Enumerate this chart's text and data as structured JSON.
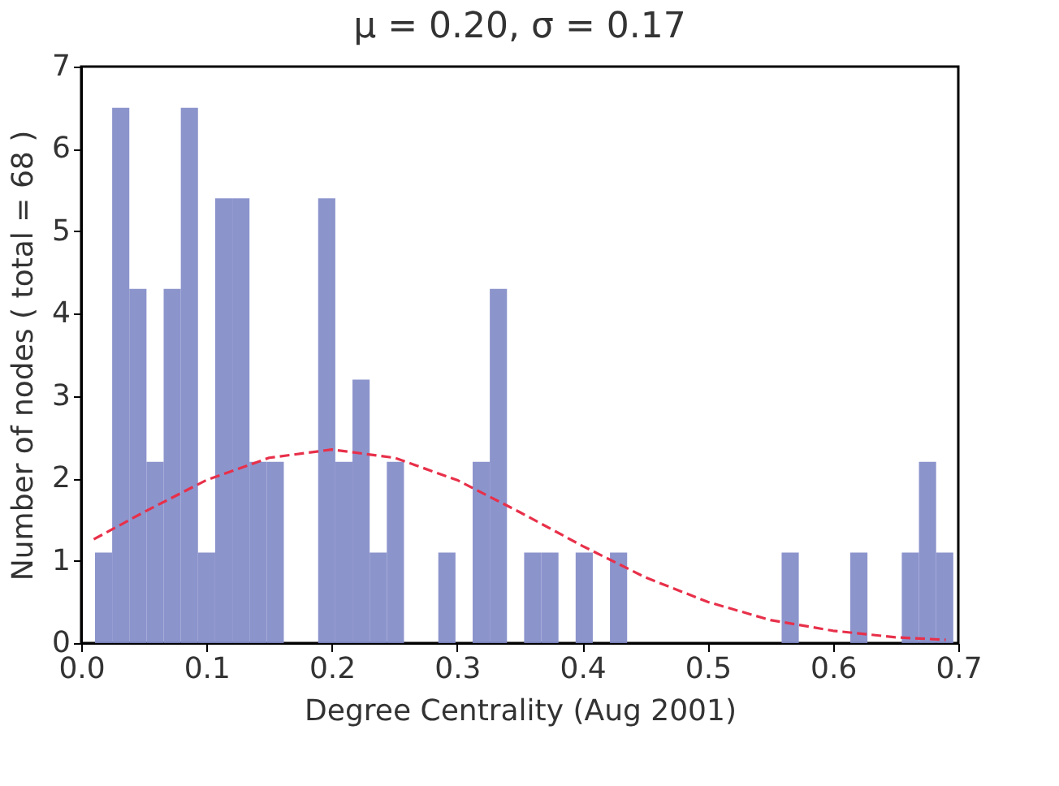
{
  "chart_data": {
    "type": "histogram",
    "title": "μ = 0.20, σ = 0.17",
    "xlabel": "Degree Centrality (Aug 2001)",
    "ylabel": "Number of nodes ( total = 68 )",
    "bins": [
      0.011,
      0.0247,
      0.0384,
      0.0521,
      0.0658,
      0.0795,
      0.0932,
      0.1069,
      0.1206,
      0.1343,
      0.148,
      0.1617,
      0.1754,
      0.1891,
      0.2028,
      0.2165,
      0.2302,
      0.2439,
      0.2576,
      0.2713,
      0.285,
      0.2987,
      0.3124,
      0.3261,
      0.3398,
      0.3535,
      0.3672,
      0.3809,
      0.3946,
      0.4083,
      0.422,
      0.4357,
      0.4494,
      0.4631,
      0.4768,
      0.4905,
      0.5042,
      0.5179,
      0.5316,
      0.5453,
      0.559,
      0.5727,
      0.5864,
      0.6001,
      0.6138,
      0.6275,
      0.6412,
      0.6549,
      0.6686,
      0.6823,
      0.696
    ],
    "values": [
      1.1,
      6.5,
      4.3,
      2.2,
      4.3,
      6.5,
      1.1,
      5.4,
      5.4,
      2.2,
      2.2,
      0,
      0,
      5.4,
      2.2,
      3.2,
      1.1,
      2.2,
      0,
      0,
      1.1,
      0,
      2.2,
      4.3,
      0,
      1.1,
      1.1,
      0,
      1.1,
      0,
      1.1,
      0,
      0,
      0,
      0,
      0,
      0,
      0,
      0,
      0,
      1.1,
      0,
      0,
      0,
      1.1,
      0,
      0,
      1.1,
      2.2,
      1.1
    ],
    "color": "#8088c6",
    "series": [
      {
        "type": "line",
        "color": "#e8304a",
        "line_style": "dashed",
        "x": [
          0.01,
          0.05,
          0.1,
          0.15,
          0.2,
          0.25,
          0.3,
          0.35,
          0.4,
          0.45,
          0.5,
          0.55,
          0.6,
          0.65,
          0.69
        ],
        "values": [
          1.26,
          1.59,
          1.98,
          2.25,
          2.35,
          2.25,
          1.98,
          1.59,
          1.18,
          0.8,
          0.5,
          0.28,
          0.15,
          0.07,
          0.04
        ]
      }
    ],
    "xlim": [
      0,
      0.7
    ],
    "xticks": [
      {
        "value": 0,
        "label": "0.0"
      },
      0.1,
      0.2,
      0.3,
      0.4,
      0.5,
      0.6,
      0.7
    ],
    "ylim": [
      0,
      7
    ],
    "yticks": [
      0,
      1,
      2,
      3,
      4,
      5,
      6,
      7
    ],
    "grid": false
  }
}
